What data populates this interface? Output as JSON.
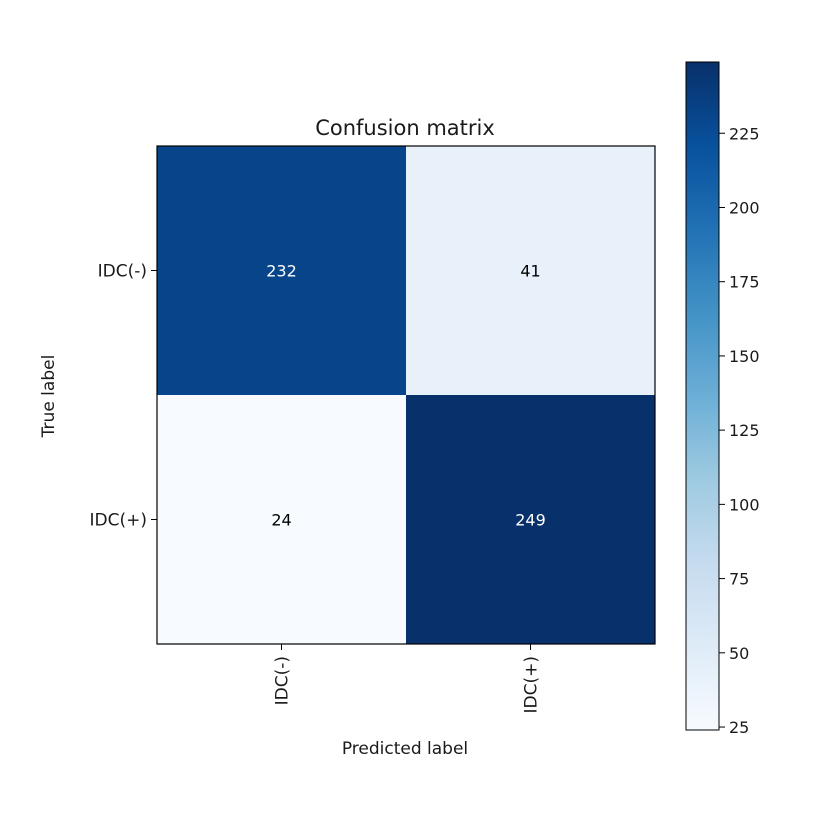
{
  "chart_data": {
    "type": "heatmap",
    "title": "Confusion matrix",
    "xlabel": "Predicted label",
    "ylabel": "True label",
    "x_categories": [
      "IDC(-)",
      "IDC(+)"
    ],
    "y_categories": [
      "IDC(-)",
      "IDC(+)"
    ],
    "values": [
      [
        232,
        41
      ],
      [
        24,
        249
      ]
    ],
    "colormap": "Blues",
    "colorbar": {
      "min": 24,
      "max": 249,
      "ticks": [
        25,
        50,
        75,
        100,
        125,
        150,
        175,
        200,
        225
      ]
    },
    "annotation_colors": {
      "dark_cell_text": "#ffffff",
      "light_cell_text": "#000000"
    }
  }
}
